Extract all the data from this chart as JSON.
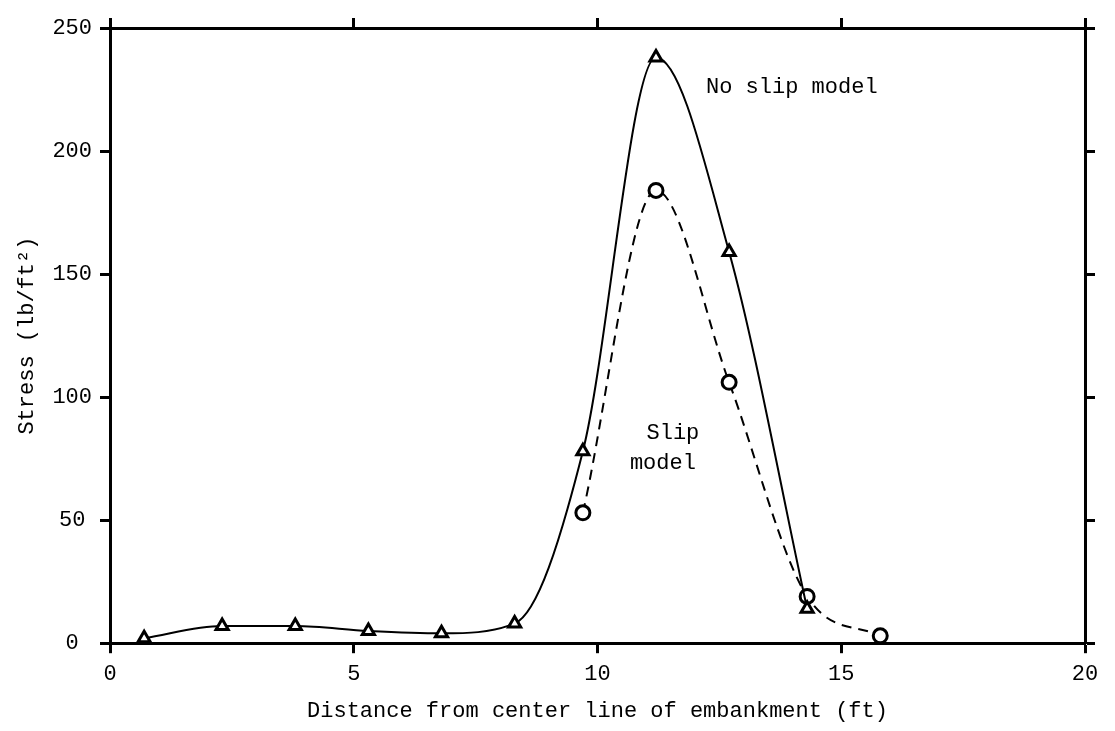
{
  "chart_data": {
    "type": "line",
    "xlabel": "Distance from center line of embankment (ft)",
    "ylabel": "Stress (lb/ft²)",
    "xlim": [
      0,
      20
    ],
    "xticks": [
      0,
      5,
      10,
      15,
      20
    ],
    "ylim": [
      0,
      250
    ],
    "yticks": [
      0,
      50,
      100,
      150,
      200,
      250
    ],
    "grid": false,
    "legend": false,
    "series": [
      {
        "name": "No slip model",
        "color": "#000000",
        "marker": "triangle",
        "line_style": "solid",
        "x": [
          0.7,
          2.3,
          3.8,
          5.3,
          6.8,
          8.3,
          9.7,
          11.2,
          12.7,
          14.3
        ],
        "values": [
          2,
          7,
          7,
          5,
          4,
          8,
          78,
          238,
          159,
          14
        ]
      },
      {
        "name": "Slip model",
        "color": "#000000",
        "marker": "circle",
        "line_style": "dashed",
        "x": [
          9.7,
          11.2,
          12.7,
          14.3,
          15.8
        ],
        "values": [
          53,
          184,
          106,
          19,
          3
        ]
      }
    ]
  }
}
